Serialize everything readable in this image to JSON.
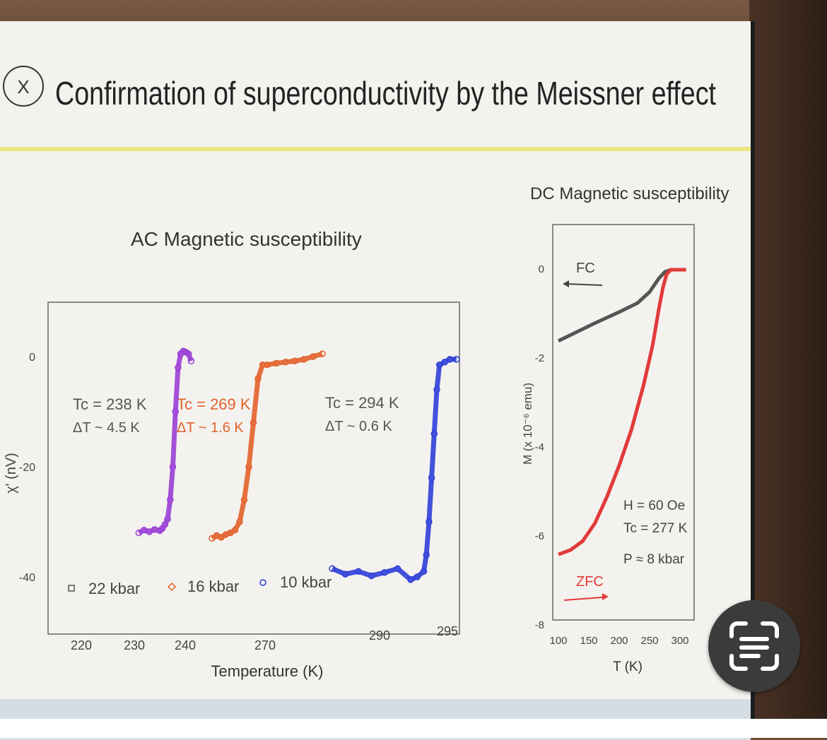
{
  "slide": {
    "title": "Confirmation of superconductivity by the Meissner effect",
    "badge": "X"
  },
  "scan_button": {
    "icon": "scan-text-icon"
  },
  "chart_data": [
    {
      "type": "scatter",
      "title": "AC Magnetic susceptibility",
      "xlabel": "Temperature (K)",
      "ylabel": "χ' (nV)",
      "ylim": [
        -40,
        0
      ],
      "yticks": [
        "0",
        "-20",
        "-40"
      ],
      "xticks": [
        "220",
        "230",
        "240",
        "270",
        "290",
        "295"
      ],
      "legend": [
        "22 kbar",
        "16 kbar",
        "10 kbar"
      ],
      "annotations": [
        {
          "tc": "Tc = 238 K",
          "dt": "ΔT ~ 4.5 K"
        },
        {
          "tc": "Tc = 269 K",
          "dt": "ΔT ~ 1.6 K"
        },
        {
          "tc": "Tc = 294 K",
          "dt": "ΔT ~ 0.6 K"
        }
      ],
      "series": [
        {
          "name": "22 kbar",
          "color": "#9b3fd6",
          "x": [
            231,
            232,
            233,
            234,
            235,
            235.5,
            236,
            236.5,
            237,
            237.5,
            238,
            238.5,
            239,
            239.5,
            240,
            240.5,
            241
          ],
          "y": [
            -32,
            -31.5,
            -31.8,
            -31.4,
            -31.6,
            -31.2,
            -30.5,
            -29.5,
            -26,
            -20,
            -10,
            -2,
            0.5,
            1,
            0.8,
            0.5,
            -0.8
          ]
        },
        {
          "name": "16 kbar",
          "color": "#e2622c",
          "x": [
            264,
            264.5,
            265,
            265.5,
            266,
            266.5,
            267,
            267.5,
            268,
            268.5,
            269,
            269.5,
            270,
            271,
            272,
            273,
            274,
            275,
            276
          ],
          "y": [
            -33,
            -32.5,
            -32.8,
            -32.3,
            -32,
            -31.5,
            -30,
            -26,
            -20,
            -12,
            -4,
            -1.5,
            -1.5,
            -1.2,
            -1,
            -0.8,
            -0.5,
            0,
            0.5
          ]
        },
        {
          "name": "10 kbar",
          "color": "#2f3fd8",
          "x": [
            286,
            287,
            288,
            289,
            290,
            291,
            292,
            292.5,
            293,
            293.2,
            293.4,
            293.6,
            293.8,
            294,
            294.2,
            294.6,
            295,
            295.5
          ],
          "y": [
            -38.5,
            -39.5,
            -39,
            -39.8,
            -39.2,
            -38.5,
            -40.5,
            -40,
            -39,
            -36,
            -30,
            -22,
            -14,
            -6,
            -1.5,
            -1,
            -0.5,
            -0.5
          ]
        }
      ]
    },
    {
      "type": "line",
      "title": "DC Magnetic susceptibility",
      "xlabel": "T (K)",
      "ylabel": "M (x 10⁻⁶ emu)",
      "xlim": [
        100,
        310
      ],
      "ylim": [
        -8,
        0
      ],
      "xticks": [
        "100",
        "150",
        "200",
        "250",
        "300"
      ],
      "yticks": [
        "0",
        "-2",
        "-4",
        "-6",
        "-8"
      ],
      "labels": {
        "fc": "FC",
        "zfc": "ZFC"
      },
      "params": [
        "H = 60 Oe",
        "Tc = 277 K",
        "P ≈ 8 kbar"
      ],
      "series": [
        {
          "name": "FC",
          "color": "#555555",
          "x": [
            100,
            130,
            160,
            200,
            230,
            250,
            265,
            275,
            285,
            300,
            310
          ],
          "y": [
            -1.6,
            -1.4,
            -1.2,
            -0.95,
            -0.75,
            -0.5,
            -0.2,
            -0.05,
            0,
            0,
            0
          ]
        },
        {
          "name": "ZFC",
          "color": "#e23a3a",
          "x": [
            100,
            120,
            140,
            160,
            180,
            200,
            220,
            240,
            255,
            265,
            272,
            278,
            285,
            295,
            310
          ],
          "y": [
            -6.4,
            -6.3,
            -6.1,
            -5.7,
            -5.1,
            -4.4,
            -3.6,
            -2.6,
            -1.7,
            -0.9,
            -0.4,
            -0.1,
            0,
            0,
            0
          ]
        }
      ]
    }
  ]
}
